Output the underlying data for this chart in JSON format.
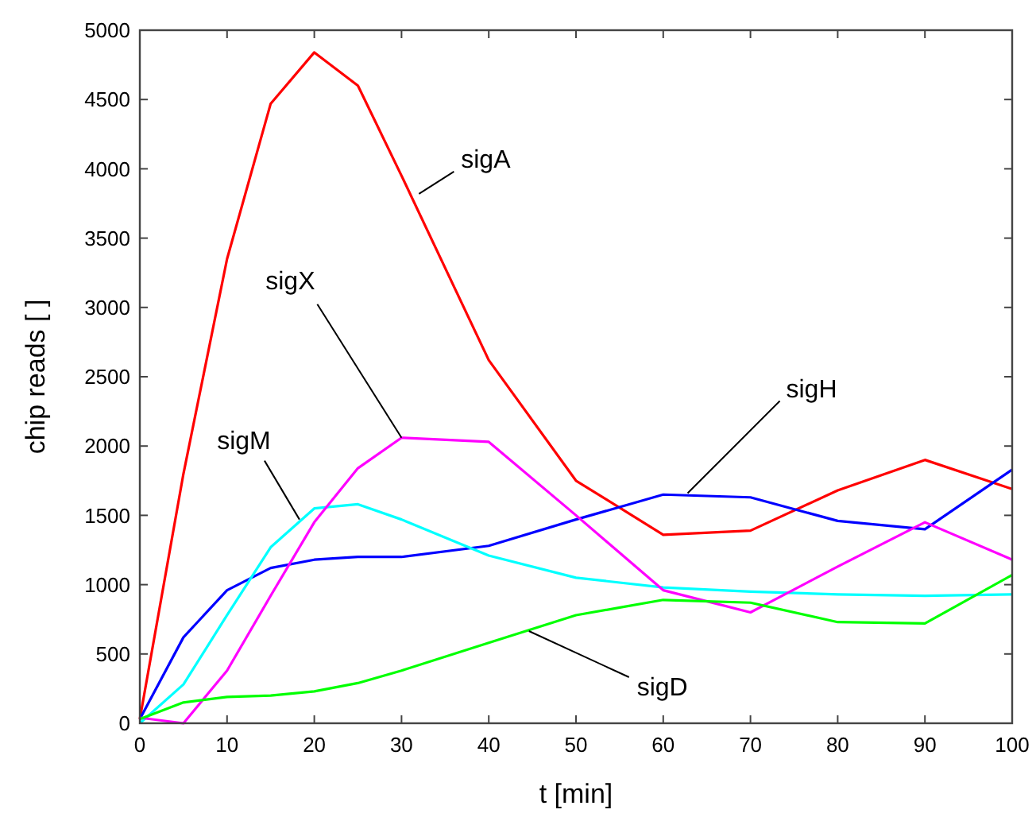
{
  "chart_data": {
    "type": "line",
    "xlabel": "t [min]",
    "ylabel": "chip reads [ ]",
    "x": [
      0,
      5,
      10,
      15,
      20,
      25,
      30,
      40,
      50,
      60,
      70,
      80,
      90,
      100
    ],
    "series": [
      {
        "name": "sigA",
        "color": "#ff0000",
        "values": [
          30,
          1800,
          3350,
          4470,
          4840,
          4600,
          3950,
          2620,
          1750,
          1360,
          1390,
          1680,
          1900,
          1690
        ]
      },
      {
        "name": "sigH",
        "color": "#0000ff",
        "values": [
          30,
          620,
          960,
          1120,
          1180,
          1200,
          1200,
          1280,
          1470,
          1650,
          1630,
          1460,
          1400,
          1830
        ]
      },
      {
        "name": "sigM",
        "color": "#00ffff",
        "values": [
          0,
          280,
          780,
          1270,
          1550,
          1580,
          1470,
          1210,
          1050,
          980,
          950,
          930,
          920,
          930
        ]
      },
      {
        "name": "sigX",
        "color": "#ff00ff",
        "values": [
          40,
          0,
          380,
          920,
          1450,
          1840,
          2060,
          2030,
          1500,
          960,
          800,
          1130,
          1450,
          1180
        ]
      },
      {
        "name": "sigD",
        "color": "#00ff00",
        "values": [
          30,
          150,
          190,
          200,
          230,
          290,
          380,
          580,
          780,
          890,
          870,
          730,
          720,
          1070
        ]
      }
    ],
    "xlim": [
      0,
      100
    ],
    "xticks": [
      0,
      10,
      20,
      30,
      40,
      50,
      60,
      70,
      80,
      90,
      100
    ],
    "ylim": [
      0,
      5000
    ],
    "yticks": [
      0,
      500,
      1000,
      1500,
      2000,
      2500,
      3000,
      3500,
      4000,
      4500,
      5000
    ],
    "grid": false,
    "legend": false,
    "marker": "none",
    "line_style": "solid"
  }
}
